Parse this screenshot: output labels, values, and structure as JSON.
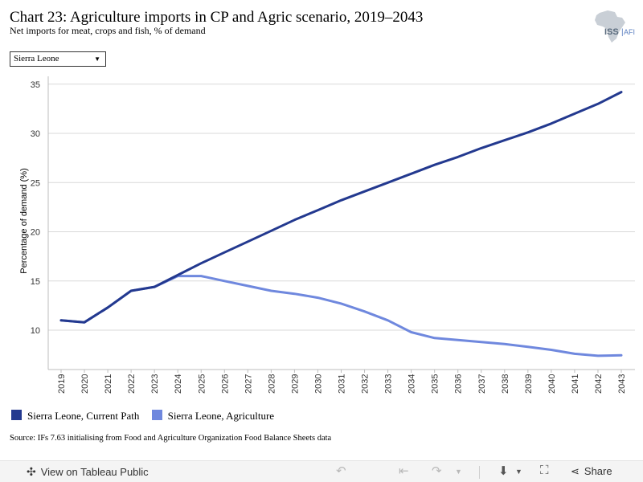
{
  "header": {
    "title": "Chart 23: Agriculture imports in CP and Agric scenario, 2019–2043",
    "subtitle": "Net imports for meat, crops and fish, % of demand",
    "logo_text": "ISS",
    "logo_text_accent": "AFI"
  },
  "filter": {
    "selected": "Sierra Leone",
    "caret": "▼"
  },
  "chart_data": {
    "type": "line",
    "ylabel": "Percentage of demand (%)",
    "ylim": [
      6.0,
      35.8
    ],
    "yticks": [
      10,
      15,
      20,
      25,
      30,
      35
    ],
    "grid": true,
    "legend_position": "bottom-left",
    "x": [
      "2019",
      "2020",
      "2021",
      "2022",
      "2023",
      "2024",
      "2025",
      "2026",
      "2027",
      "2028",
      "2029",
      "2030",
      "2031",
      "2032",
      "2033",
      "2034",
      "2035",
      "2036",
      "2037",
      "2038",
      "2039",
      "2040",
      "2041",
      "2042",
      "2043"
    ],
    "series": [
      {
        "name": "Sierra Leone, Current Path",
        "color": "#23398f",
        "values": [
          11.0,
          10.8,
          12.3,
          14.0,
          14.4,
          15.6,
          16.8,
          17.9,
          19.0,
          20.1,
          21.2,
          22.2,
          23.2,
          24.1,
          25.0,
          25.9,
          26.8,
          27.6,
          28.5,
          29.3,
          30.1,
          31.0,
          32.0,
          33.0,
          34.2
        ]
      },
      {
        "name": "Sierra Leone, Agriculture",
        "color": "#6f88de",
        "values": [
          11.0,
          10.8,
          12.3,
          14.0,
          14.4,
          15.5,
          15.5,
          15.0,
          14.5,
          14.0,
          13.7,
          13.3,
          12.7,
          11.9,
          11.0,
          9.8,
          9.2,
          9.0,
          8.8,
          8.6,
          8.3,
          8.0,
          7.6,
          7.4,
          7.45
        ]
      }
    ]
  },
  "source": "Source: IFs 7.63 initialising from Food and Agriculture Organization Food Balance Sheets data",
  "toolbar": {
    "view_label": "View on Tableau Public",
    "share_label": "Share",
    "icons": [
      "tableau-icon",
      "undo-icon",
      "undo-all-icon",
      "redo-icon",
      "dropdown-arrow-icon",
      "download-icon",
      "fullscreen-icon",
      "share-icon"
    ]
  }
}
